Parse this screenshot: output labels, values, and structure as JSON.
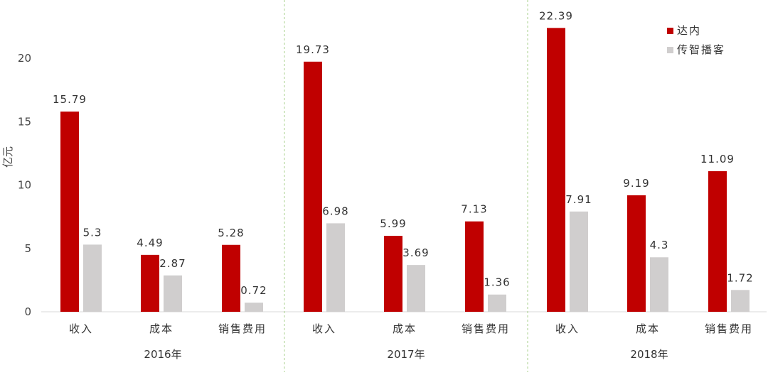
{
  "chart_data": {
    "type": "bar",
    "ylabel": "亿元",
    "ylim": [
      0,
      25
    ],
    "yticks": [
      0,
      5,
      10,
      15,
      20
    ],
    "grid": false,
    "legend_position": "top-right",
    "groups": [
      {
        "label": "2016年",
        "categories": [
          "收入",
          "成本",
          "销售费用"
        ]
      },
      {
        "label": "2017年",
        "categories": [
          "收入",
          "成本",
          "销售费用"
        ]
      },
      {
        "label": "2018年",
        "categories": [
          "收入",
          "成本",
          "销售费用"
        ]
      }
    ],
    "series": [
      {
        "name": "达内",
        "color": "#C00000",
        "values": [
          15.79,
          4.49,
          5.28,
          19.73,
          5.99,
          7.13,
          22.39,
          9.19,
          11.09
        ],
        "labels": [
          "15.79",
          "4.49",
          "5.28",
          "19.73",
          "5.99",
          "7.13",
          "22.39",
          "9.19",
          "11.09"
        ]
      },
      {
        "name": "传智播客",
        "color": "#D0CECE",
        "values": [
          5.3,
          2.87,
          0.72,
          6.98,
          3.69,
          1.36,
          7.91,
          4.3,
          1.72
        ],
        "labels": [
          "5.3",
          "2.87",
          "0.72",
          "6.98",
          "3.69",
          "1.36",
          "7.91",
          "4.3",
          "1.72"
        ]
      }
    ]
  }
}
